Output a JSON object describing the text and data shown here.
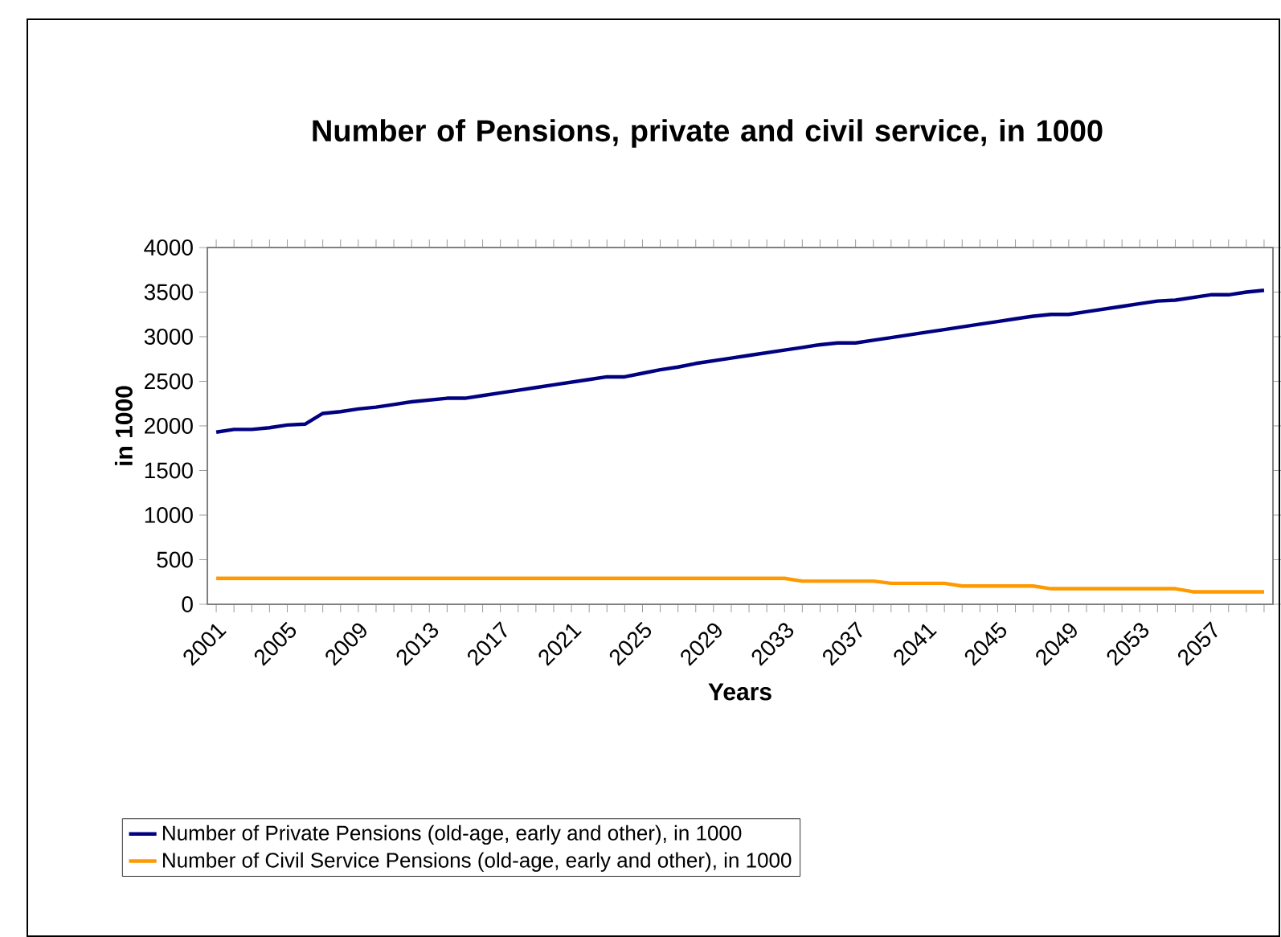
{
  "chart_data": {
    "type": "line",
    "title": "Number of Pensions, private and civil service, in 1000",
    "xlabel": "Years",
    "ylabel": "in 1000",
    "categories": [
      "2001",
      null,
      null,
      null,
      "2005",
      null,
      null,
      null,
      "2009",
      null,
      null,
      null,
      "2013",
      null,
      null,
      null,
      "2017",
      null,
      null,
      null,
      "2021",
      null,
      null,
      null,
      "2025",
      null,
      null,
      null,
      "2029",
      null,
      null,
      null,
      "2033",
      null,
      null,
      null,
      "2037",
      null,
      null,
      null,
      "2041",
      null,
      null,
      null,
      "2045",
      null,
      null,
      null,
      "2049",
      null,
      null,
      null,
      "2053",
      null,
      null,
      null,
      "2057",
      null,
      null,
      null
    ],
    "ylim": [
      0,
      4000
    ],
    "yticks": [
      0,
      500,
      1000,
      1500,
      2000,
      2500,
      3000,
      3500,
      4000
    ],
    "legend": "bottom",
    "series": [
      {
        "name": "Number of Private Pensions (old-age, early and other), in 1000",
        "color": "#000080",
        "values": [
          1930,
          1960,
          1960,
          1980,
          2010,
          2020,
          2140,
          2160,
          2190,
          2210,
          2240,
          2270,
          2290,
          2310,
          2310,
          2340,
          2370,
          2400,
          2430,
          2460,
          2490,
          2520,
          2550,
          2550,
          2590,
          2630,
          2660,
          2700,
          2730,
          2760,
          2790,
          2820,
          2850,
          2880,
          2910,
          2930,
          2930,
          2960,
          2990,
          3020,
          3050,
          3080,
          3110,
          3140,
          3170,
          3200,
          3230,
          3250,
          3250,
          3280,
          3310,
          3340,
          3370,
          3400,
          3410,
          3440,
          3470,
          3470,
          3500,
          3520
        ]
      },
      {
        "name": "Number of Civil Service Pensions (old-age, early and other), in 1000",
        "color": "#ff9900",
        "values": [
          290,
          290,
          290,
          290,
          290,
          290,
          290,
          290,
          290,
          290,
          290,
          290,
          290,
          290,
          290,
          290,
          290,
          290,
          290,
          290,
          290,
          290,
          290,
          290,
          290,
          290,
          290,
          290,
          290,
          290,
          290,
          290,
          290,
          260,
          260,
          260,
          260,
          260,
          235,
          235,
          235,
          235,
          205,
          205,
          205,
          205,
          205,
          175,
          175,
          175,
          175,
          175,
          175,
          175,
          175,
          140,
          140,
          140,
          140,
          140
        ]
      }
    ]
  }
}
